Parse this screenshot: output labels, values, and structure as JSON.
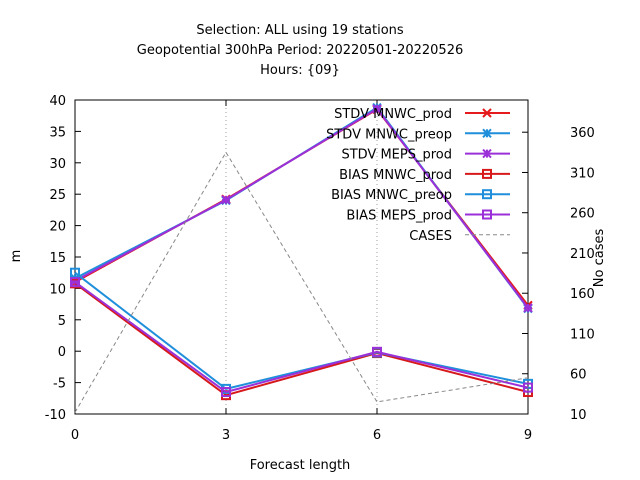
{
  "chart_data": {
    "type": "line",
    "title_lines": [
      "Selection: ALL using    19 stations",
      "Geopotential 300hPa   Period: 20220501-20220526",
      "Hours: {09}"
    ],
    "xlabel": "Forecast length",
    "ylabel": "m",
    "y2label": "No cases",
    "x": [
      0,
      3,
      6,
      9
    ],
    "xticks": [
      "0",
      "3",
      "6",
      "9"
    ],
    "xlim": [
      0,
      9
    ],
    "ylim": [
      -10,
      40
    ],
    "yticks": [
      "-10",
      "-5",
      "0",
      "5",
      "10",
      "15",
      "20",
      "25",
      "30",
      "35",
      "40"
    ],
    "y2lim": [
      10,
      400
    ],
    "y2ticks": [
      "60",
      "110",
      "160",
      "210",
      "260",
      "310",
      "360"
    ],
    "y2ticks_extra": [
      "10"
    ],
    "grid": true,
    "legend_position": "top-right",
    "series": [
      {
        "name": "STDV MNWC_prod",
        "axis": "y",
        "marker": "x",
        "color": "#e41a1c",
        "values": [
          11.0,
          24.2,
          38.5,
          7.3
        ]
      },
      {
        "name": "STDV MNWC_preop",
        "axis": "y",
        "marker": "star",
        "color": "#1f8fdb",
        "values": [
          11.6,
          24.0,
          38.8,
          6.8
        ]
      },
      {
        "name": "STDV MEPS_prod",
        "axis": "y",
        "marker": "star",
        "color": "#9b30d9",
        "values": [
          11.2,
          24.1,
          38.6,
          6.9
        ]
      },
      {
        "name": "BIAS MNWC_prod",
        "axis": "y",
        "marker": "square",
        "color": "#d7191c",
        "values": [
          10.8,
          -7.0,
          -0.3,
          -6.5
        ]
      },
      {
        "name": "BIAS MNWC_preop",
        "axis": "y",
        "marker": "square",
        "color": "#1f8fdb",
        "values": [
          12.5,
          -6.0,
          -0.2,
          -5.2
        ]
      },
      {
        "name": "BIAS MEPS_prod",
        "axis": "y",
        "marker": "square",
        "color": "#9b30d9",
        "values": [
          11.0,
          -6.5,
          -0.1,
          -5.8
        ]
      },
      {
        "name": "CASES",
        "axis": "y2",
        "marker": "none",
        "color": "#888888",
        "dashed": true,
        "values": [
          12,
          335,
          25,
          55
        ]
      }
    ]
  }
}
